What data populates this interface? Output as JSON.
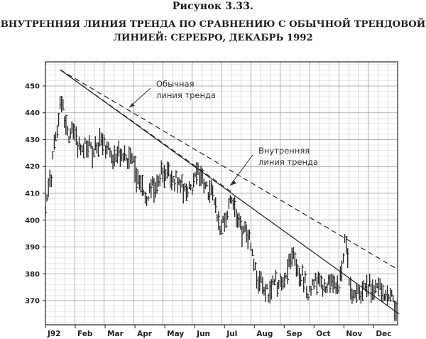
{
  "figure": {
    "label": "Рисунок 3.33.",
    "title_line1": "ВНУТРЕННЯЯ ЛИНИЯ ТРЕНДА ПО СРАВНЕНИЮ С ОБЫЧНОЙ ТРЕНДОВОЙ",
    "title_line2": "ЛИНИЕЙ: СЕРЕБРО, ДЕКАБРЬ 1992"
  },
  "chart_data": {
    "type": "bar",
    "subtype": "ohlc-price-bars",
    "title": "ВНУТРЕННЯЯ ЛИНИЯ ТРЕНДА ПО СРАВНЕНИЮ С ОБЫЧНОЙ ТРЕНДОВОЙ ЛИНИЕЙ: СЕРЕБРО, ДЕКАБРЬ 1992",
    "xlabel": "",
    "ylabel": "",
    "x_ticks": [
      "J92",
      "Feb",
      "Mar",
      "Apr",
      "May",
      "Jun",
      "Jul",
      "Aug",
      "Sep",
      "Oct",
      "Nov",
      "Dec"
    ],
    "y_ticks": [
      370,
      380,
      390,
      400,
      410,
      420,
      430,
      440,
      450
    ],
    "xlim": [
      0,
      11.8
    ],
    "ylim": [
      361,
      459
    ],
    "grid": true,
    "legend": "none",
    "price_path": [
      [
        0.0,
        403
      ],
      [
        0.1,
        412
      ],
      [
        0.2,
        416
      ],
      [
        0.3,
        428
      ],
      [
        0.4,
        433
      ],
      [
        0.5,
        446
      ],
      [
        0.6,
        441
      ],
      [
        0.7,
        437
      ],
      [
        0.8,
        432
      ],
      [
        0.9,
        436
      ],
      [
        1.0,
        430
      ],
      [
        1.2,
        427
      ],
      [
        1.4,
        428
      ],
      [
        1.6,
        426
      ],
      [
        1.8,
        428
      ],
      [
        2.0,
        427
      ],
      [
        2.2,
        424
      ],
      [
        2.4,
        426
      ],
      [
        2.6,
        422
      ],
      [
        2.8,
        424
      ],
      [
        3.0,
        419
      ],
      [
        3.2,
        411
      ],
      [
        3.4,
        407
      ],
      [
        3.55,
        412
      ],
      [
        3.7,
        413
      ],
      [
        3.9,
        418
      ],
      [
        4.1,
        417
      ],
      [
        4.3,
        415
      ],
      [
        4.5,
        415
      ],
      [
        4.7,
        411
      ],
      [
        4.9,
        413
      ],
      [
        5.1,
        418
      ],
      [
        5.3,
        413
      ],
      [
        5.5,
        410
      ],
      [
        5.6,
        410
      ],
      [
        5.75,
        401
      ],
      [
        5.9,
        398
      ],
      [
        6.05,
        402
      ],
      [
        6.2,
        406
      ],
      [
        6.4,
        403
      ],
      [
        6.6,
        396
      ],
      [
        6.8,
        395
      ],
      [
        6.95,
        385
      ],
      [
        7.1,
        379
      ],
      [
        7.3,
        375
      ],
      [
        7.5,
        373
      ],
      [
        7.7,
        377
      ],
      [
        7.9,
        376
      ],
      [
        8.1,
        382
      ],
      [
        8.25,
        388
      ],
      [
        8.4,
        382
      ],
      [
        8.6,
        379
      ],
      [
        8.8,
        374
      ],
      [
        9.0,
        377
      ],
      [
        9.2,
        376
      ],
      [
        9.4,
        374
      ],
      [
        9.6,
        378
      ],
      [
        9.8,
        374
      ],
      [
        9.95,
        385
      ],
      [
        10.05,
        394
      ],
      [
        10.15,
        383
      ],
      [
        10.25,
        370
      ],
      [
        10.4,
        372
      ],
      [
        10.6,
        374
      ],
      [
        10.8,
        376
      ],
      [
        11.0,
        374
      ],
      [
        11.2,
        374
      ],
      [
        11.4,
        373
      ],
      [
        11.55,
        372
      ],
      [
        11.65,
        371
      ],
      [
        11.75,
        366
      ]
    ],
    "trendlines": [
      {
        "name": "Обычная линия тренда",
        "style": "dashed",
        "from": [
          0.5,
          456
        ],
        "to": [
          11.75,
          382
        ]
      },
      {
        "name": "",
        "style": "dashed",
        "from": [
          0.5,
          456
        ],
        "to": [
          6.3,
          410
        ]
      },
      {
        "name": "Внутренняя линия тренда",
        "style": "solid",
        "from": [
          0.5,
          456
        ],
        "to": [
          11.85,
          365
        ]
      }
    ],
    "annotations": [
      {
        "text_line1": "Обычная",
        "text_line2": "линия тренда",
        "points_to_line": "Обычная линия тренда"
      },
      {
        "text_line1": "Внутренняя",
        "text_line2": "линия тренда",
        "points_to_line": "Внутренняя линия тренда"
      }
    ]
  }
}
